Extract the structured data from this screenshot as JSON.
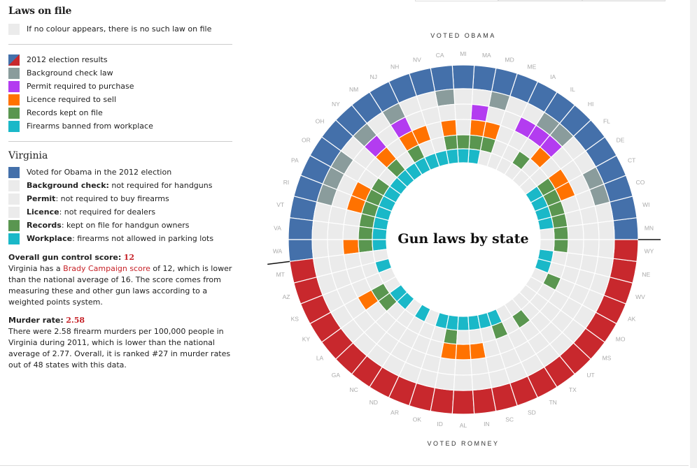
{
  "legend": {
    "title": "Laws on file",
    "empty_note": "If no colour appears, there is no such law on file",
    "items": [
      {
        "key": "election",
        "label": "2012 election results"
      },
      {
        "key": "background",
        "label": "Background check law"
      },
      {
        "key": "permit",
        "label": "Permit required to purchase"
      },
      {
        "key": "licence",
        "label": "Licence required to sell"
      },
      {
        "key": "records",
        "label": "Records kept on file"
      },
      {
        "key": "workplace",
        "label": "Firearms banned from workplace"
      }
    ]
  },
  "colors": {
    "obama": "#4470aa",
    "romney": "#c8282d",
    "background": "#8a9c9c",
    "permit": "#b33cf0",
    "licence": "#ff7200",
    "records": "#5a9650",
    "workplace": "#1ab8c8",
    "empty": "#ebebeb"
  },
  "selected_state": {
    "name": "Virginia",
    "rows": [
      {
        "color": "obama",
        "bold": "",
        "text": "Voted for Obama in the 2012 election"
      },
      {
        "color": "empty",
        "bold": "Background check:",
        "text": " not required for handguns"
      },
      {
        "color": "empty",
        "bold": "Permit",
        "text": ": not required to buy firearms"
      },
      {
        "color": "empty",
        "bold": "Licence",
        "text": ": not required for dealers"
      },
      {
        "color": "records",
        "bold": "Records",
        "text": ": kept on file for handgun owners"
      },
      {
        "color": "workplace",
        "bold": "Workplace",
        "text": ": firearms not allowed in parking lots"
      }
    ],
    "score_heading": "Overall gun control score:",
    "score_value": "12",
    "score_text_1": "Virginia has a ",
    "score_link": "Brady Campaign score",
    "score_text_2": " of 12, which is lower than the national average of 16. The score comes from measuring these and other gun laws according to a weighted points system.",
    "murder_heading": "Murder rate:",
    "murder_value": "2.58",
    "murder_text": "There were 2.58 firearm murders per 100,000 people in Virginia during 2011, which is lower than the national average of 2.77. Overall, it is ranked #27 in murder rates out of 48 states with this data."
  },
  "chart_data": {
    "type": "heatmap",
    "title": "Gun laws by state",
    "caption_top": "VOTED OBAMA",
    "caption_bottom": "VOTED ROMNEY",
    "rings": [
      "election",
      "background",
      "permit",
      "licence",
      "records",
      "workplace"
    ],
    "states": [
      {
        "s": "MN",
        "vote": "obama",
        "laws": [
          "records"
        ]
      },
      {
        "s": "WI",
        "vote": "obama",
        "laws": [
          "records",
          "workplace"
        ]
      },
      {
        "s": "CO",
        "vote": "obama",
        "laws": [
          "background",
          "records",
          "workplace"
        ]
      },
      {
        "s": "CT",
        "vote": "obama",
        "laws": [
          "background",
          "licence",
          "records",
          "workplace"
        ]
      },
      {
        "s": "DE",
        "vote": "obama",
        "laws": [
          "licence",
          "records",
          "workplace"
        ]
      },
      {
        "s": "FL",
        "vote": "obama",
        "laws": []
      },
      {
        "s": "HI",
        "vote": "obama",
        "laws": [
          "background",
          "permit",
          "licence"
        ]
      },
      {
        "s": "IL",
        "vote": "obama",
        "laws": [
          "background",
          "permit",
          "records"
        ]
      },
      {
        "s": "IA",
        "vote": "obama",
        "laws": [
          "permit"
        ]
      },
      {
        "s": "ME",
        "vote": "obama",
        "laws": []
      },
      {
        "s": "MD",
        "vote": "obama",
        "laws": [
          "background",
          "licence",
          "records"
        ]
      },
      {
        "s": "MA",
        "vote": "obama",
        "laws": [
          "permit",
          "licence",
          "records",
          "workplace"
        ]
      },
      {
        "s": "MI",
        "vote": "obama",
        "laws": [
          "records",
          "workplace"
        ]
      },
      {
        "s": "CA",
        "vote": "obama",
        "laws": [
          "background",
          "licence",
          "records",
          "workplace"
        ]
      },
      {
        "s": "NV",
        "vote": "obama",
        "laws": [
          "workplace"
        ]
      },
      {
        "s": "NH",
        "vote": "obama",
        "laws": [
          "licence",
          "workplace"
        ]
      },
      {
        "s": "NJ",
        "vote": "obama",
        "laws": [
          "background",
          "permit",
          "licence",
          "records",
          "workplace"
        ]
      },
      {
        "s": "NM",
        "vote": "obama",
        "laws": [
          "workplace"
        ]
      },
      {
        "s": "NY",
        "vote": "obama",
        "laws": [
          "background",
          "permit",
          "licence",
          "records",
          "workplace"
        ]
      },
      {
        "s": "OH",
        "vote": "obama",
        "laws": [
          "workplace"
        ]
      },
      {
        "s": "OR",
        "vote": "obama",
        "laws": [
          "background",
          "records",
          "workplace"
        ]
      },
      {
        "s": "PA",
        "vote": "obama",
        "laws": [
          "background",
          "licence",
          "records",
          "workplace"
        ]
      },
      {
        "s": "RI",
        "vote": "obama",
        "laws": [
          "background",
          "licence",
          "records",
          "workplace"
        ]
      },
      {
        "s": "VT",
        "vote": "obama",
        "laws": [
          "records",
          "workplace"
        ]
      },
      {
        "s": "VA",
        "vote": "obama",
        "laws": [
          "records",
          "workplace"
        ]
      },
      {
        "s": "WA",
        "vote": "obama",
        "laws": [
          "licence",
          "records",
          "workplace"
        ]
      },
      {
        "s": "MT",
        "vote": "romney",
        "laws": []
      },
      {
        "s": "AZ",
        "vote": "romney",
        "laws": [
          "workplace"
        ]
      },
      {
        "s": "KS",
        "vote": "romney",
        "laws": []
      },
      {
        "s": "KY",
        "vote": "romney",
        "laws": [
          "licence",
          "records"
        ]
      },
      {
        "s": "LA",
        "vote": "romney",
        "laws": [
          "records",
          "workplace"
        ]
      },
      {
        "s": "GA",
        "vote": "romney",
        "laws": [
          "workplace"
        ]
      },
      {
        "s": "NC",
        "vote": "romney",
        "laws": []
      },
      {
        "s": "ND",
        "vote": "romney",
        "laws": [
          "workplace"
        ]
      },
      {
        "s": "AR",
        "vote": "romney",
        "laws": []
      },
      {
        "s": "OK",
        "vote": "romney",
        "laws": [
          "workplace"
        ]
      },
      {
        "s": "ID",
        "vote": "romney",
        "laws": [
          "licence",
          "records",
          "workplace"
        ]
      },
      {
        "s": "AL",
        "vote": "romney",
        "laws": [
          "licence",
          "workplace"
        ]
      },
      {
        "s": "IN",
        "vote": "romney",
        "laws": [
          "licence",
          "workplace"
        ]
      },
      {
        "s": "SC",
        "vote": "romney",
        "laws": [
          "workplace"
        ]
      },
      {
        "s": "SD",
        "vote": "romney",
        "laws": [
          "records",
          "workplace"
        ]
      },
      {
        "s": "TN",
        "vote": "romney",
        "laws": []
      },
      {
        "s": "TX",
        "vote": "romney",
        "laws": [
          "records"
        ]
      },
      {
        "s": "UT",
        "vote": "romney",
        "laws": []
      },
      {
        "s": "MS",
        "vote": "romney",
        "laws": []
      },
      {
        "s": "MO",
        "vote": "romney",
        "laws": []
      },
      {
        "s": "AK",
        "vote": "romney",
        "laws": [
          "records"
        ]
      },
      {
        "s": "WV",
        "vote": "romney",
        "laws": [
          "workplace"
        ]
      },
      {
        "s": "NE",
        "vote": "romney",
        "laws": [
          "workplace"
        ]
      },
      {
        "s": "WY",
        "vote": "romney",
        "laws": [
          "records"
        ]
      }
    ]
  }
}
